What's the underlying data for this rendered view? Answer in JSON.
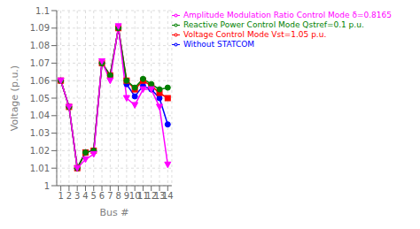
{
  "chart_data": {
    "type": "line",
    "x": [
      1,
      2,
      3,
      4,
      5,
      6,
      7,
      8,
      9,
      10,
      11,
      12,
      13,
      14
    ],
    "series": [
      {
        "name": "Without STATCOM",
        "color": "#0000FF",
        "marker": "circle",
        "values": [
          1.06,
          1.045,
          1.01,
          1.019,
          1.02,
          1.07,
          1.063,
          1.09,
          1.058,
          1.051,
          1.057,
          1.055,
          1.05,
          1.035
        ]
      },
      {
        "name": "Voltage Control Mode Vst=1.05 p.u.",
        "color": "#FF0000",
        "marker": "square",
        "values": [
          1.06,
          1.045,
          1.01,
          1.019,
          1.02,
          1.07,
          1.063,
          1.09,
          1.06,
          1.055,
          1.06,
          1.057,
          1.053,
          1.05
        ]
      },
      {
        "name": "Reactive Power Control Mode Qstref=0.1 p.u.",
        "color": "#007F00",
        "marker": "circle",
        "values": [
          1.06,
          1.045,
          1.01,
          1.019,
          1.02,
          1.07,
          1.063,
          1.09,
          1.06,
          1.056,
          1.061,
          1.058,
          1.055,
          1.056
        ]
      },
      {
        "name": "Amplitude Modulation Ratio Control Mode δ=0.8165",
        "color": "#FF00FF",
        "marker": "triangle-down",
        "values": [
          1.06,
          1.045,
          1.01,
          1.015,
          1.018,
          1.071,
          1.06,
          1.091,
          1.05,
          1.046,
          1.055,
          1.055,
          1.045,
          1.012
        ]
      }
    ],
    "xlabel": "Bus #",
    "ylabel": "Voltage (p.u.)",
    "xlim": [
      0.5,
      14.5
    ],
    "xticks": [
      1,
      2,
      3,
      4,
      5,
      6,
      7,
      8,
      9,
      10,
      11,
      12,
      13,
      14
    ],
    "ylim": [
      1.0,
      1.1
    ],
    "yticks": [
      1.0,
      1.01,
      1.02,
      1.03,
      1.04,
      1.05,
      1.06,
      1.07,
      1.08,
      1.09,
      1.1
    ],
    "grid": true,
    "legend": "upper right"
  }
}
